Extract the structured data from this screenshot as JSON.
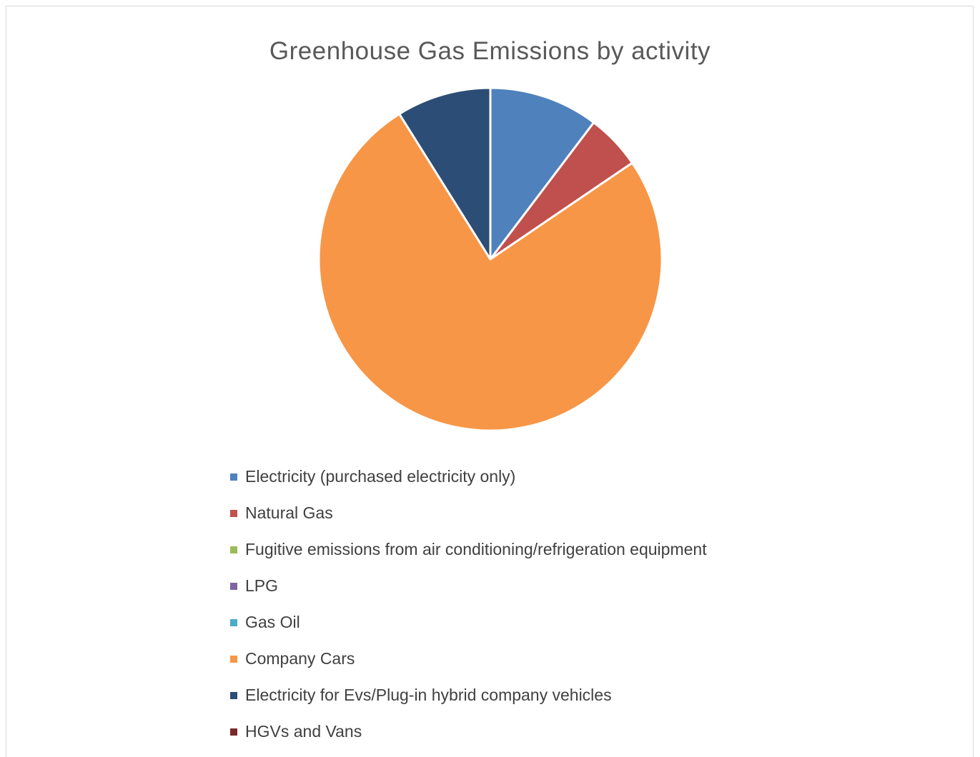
{
  "chart_data": {
    "type": "pie",
    "title": "Greenhouse Gas Emissions by activity",
    "legend_position": "bottom",
    "start_angle_deg": 0,
    "direction": "clockwise",
    "unit": "percent (estimated)",
    "slices": [
      {
        "label": "Electricity (purchased electricity only)",
        "value": 10.3,
        "color": "#4F81BD"
      },
      {
        "label": "Natural Gas",
        "value": 5.2,
        "color": "#C0504D"
      },
      {
        "label": "Fugitive emissions from air conditioning/refrigeration equipment",
        "value": 0,
        "color": "#9BBB59"
      },
      {
        "label": "LPG",
        "value": 0,
        "color": "#8064A2"
      },
      {
        "label": "Gas Oil",
        "value": 0,
        "color": "#4BACC6"
      },
      {
        "label": "Company Cars",
        "value": 75.6,
        "color": "#F79646"
      },
      {
        "label": "Electricity for Evs/Plug-in hybrid company vehicles",
        "value": 8.9,
        "color": "#2C4D75"
      },
      {
        "label": "HGVs and Vans",
        "value": 0,
        "color": "#772C2A"
      }
    ]
  }
}
